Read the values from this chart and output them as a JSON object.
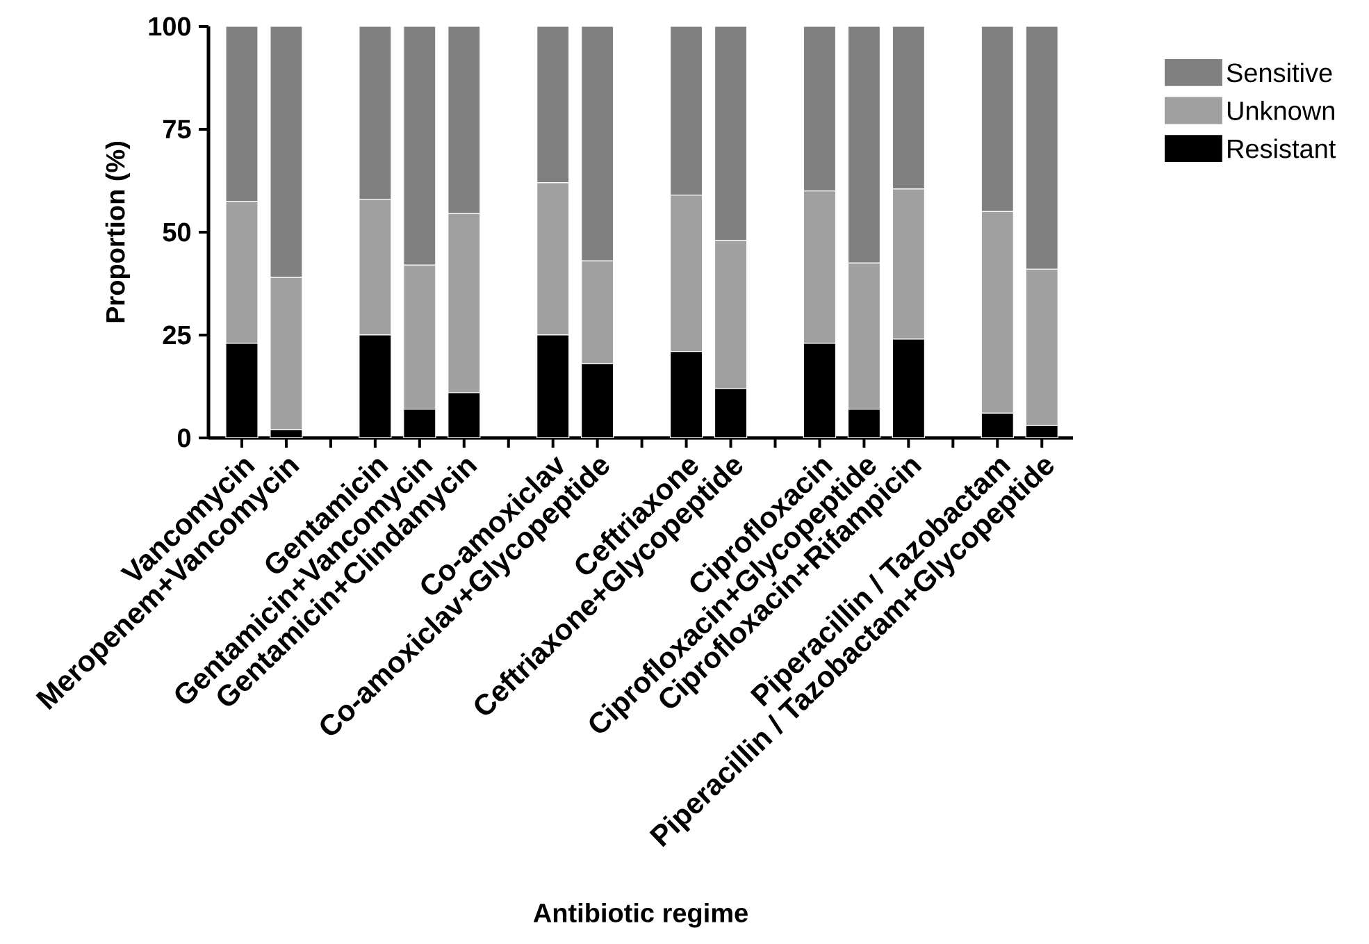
{
  "chart_data": {
    "type": "bar",
    "stacked": true,
    "xlabel": "Antibiotic regime",
    "ylabel": "Proportion (%)",
    "categories": [
      "Vancomycin",
      "Meropenem+Vancomycin",
      null,
      "Gentamicin",
      "Gentamicin+Vancomycin",
      "Gentamicin+Clindamycin",
      null,
      "Co-amoxiclav",
      "Co-amoxiclav+Glycopeptide",
      null,
      "Ceftriaxone",
      "Ceftriaxone+Glycopeptide",
      null,
      "Ciprofloxacin",
      "Ciprofloxacin+Glycopeptide",
      "Ciprofloxacin+Rifampicin",
      null,
      "Piperacillin / Tazobactam",
      "Piperacillin / Tazobactam+Glycopeptide"
    ],
    "series": [
      {
        "name": "Resistant",
        "color": "#000000",
        "values": [
          23,
          2,
          null,
          25,
          7,
          11,
          null,
          25,
          18,
          null,
          21,
          12,
          null,
          23,
          7,
          24,
          null,
          6,
          3
        ]
      },
      {
        "name": "Unknown",
        "color": "#a0a0a0",
        "values": [
          34.5,
          37,
          null,
          33,
          35,
          43.5,
          null,
          37,
          25,
          null,
          38,
          36,
          null,
          37,
          35.5,
          36.5,
          null,
          49,
          38
        ]
      },
      {
        "name": "Sensitive",
        "color": "#808080",
        "values": [
          42.5,
          61,
          null,
          42,
          58,
          45.5,
          null,
          38,
          57,
          null,
          41,
          52,
          null,
          40,
          57.5,
          39.5,
          null,
          45,
          59
        ]
      }
    ],
    "ylim": [
      0,
      100
    ],
    "yticks": [
      0,
      25,
      50,
      75,
      100
    ],
    "grid": false,
    "legend": "right"
  }
}
